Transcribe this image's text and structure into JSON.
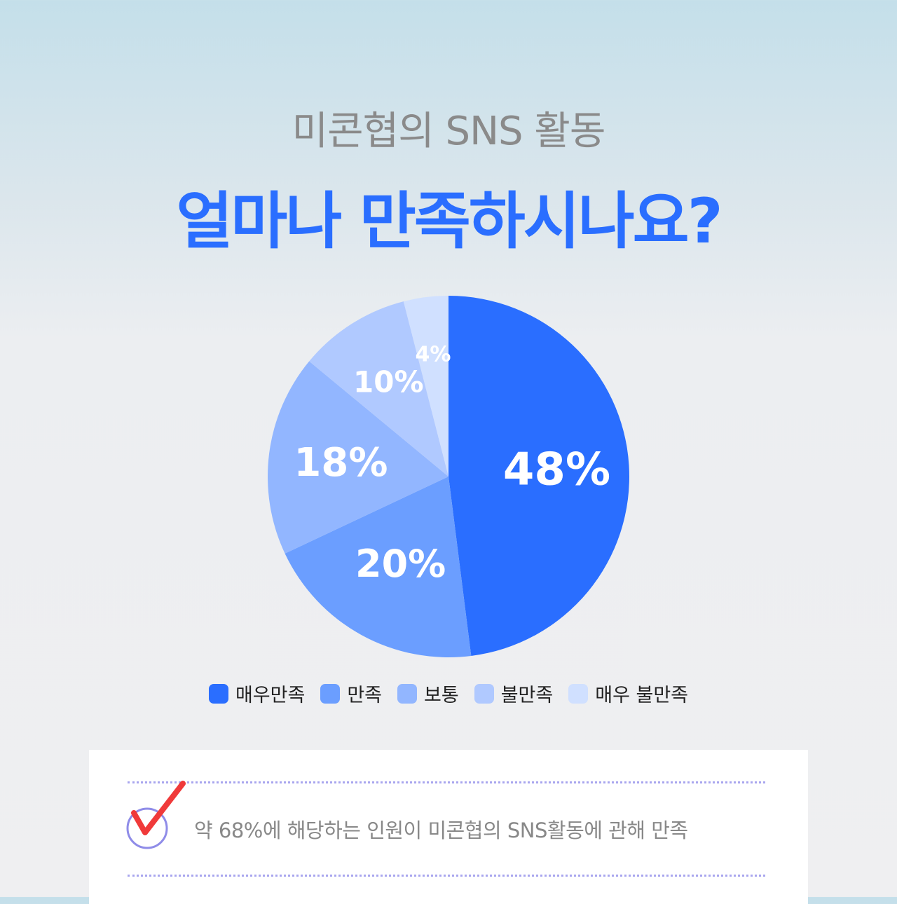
{
  "header": {
    "subtitle": "미콘협의 SNS 활동",
    "title": "얼마나 만족하시나요?"
  },
  "chart_data": {
    "type": "pie",
    "start": "top",
    "direction": "clockwise",
    "categories": [
      "매우만족",
      "만족",
      "보통",
      "불만족",
      "매우 불만족"
    ],
    "values": [
      48,
      20,
      18,
      10,
      4
    ],
    "labels": [
      "48%",
      "20%",
      "18%",
      "10%",
      "4%"
    ],
    "colors": [
      "#2a6eff",
      "#6b9eff",
      "#92b6ff",
      "#b0c9ff",
      "#d0e0ff"
    ],
    "legend": "bottom"
  },
  "summary": {
    "text": "약 68%에 해당하는 인원이 미콘협의 SNS활동에 관해 만족",
    "check_icon_color": "#f03a3a",
    "circle_color": "#8f8ce8"
  }
}
